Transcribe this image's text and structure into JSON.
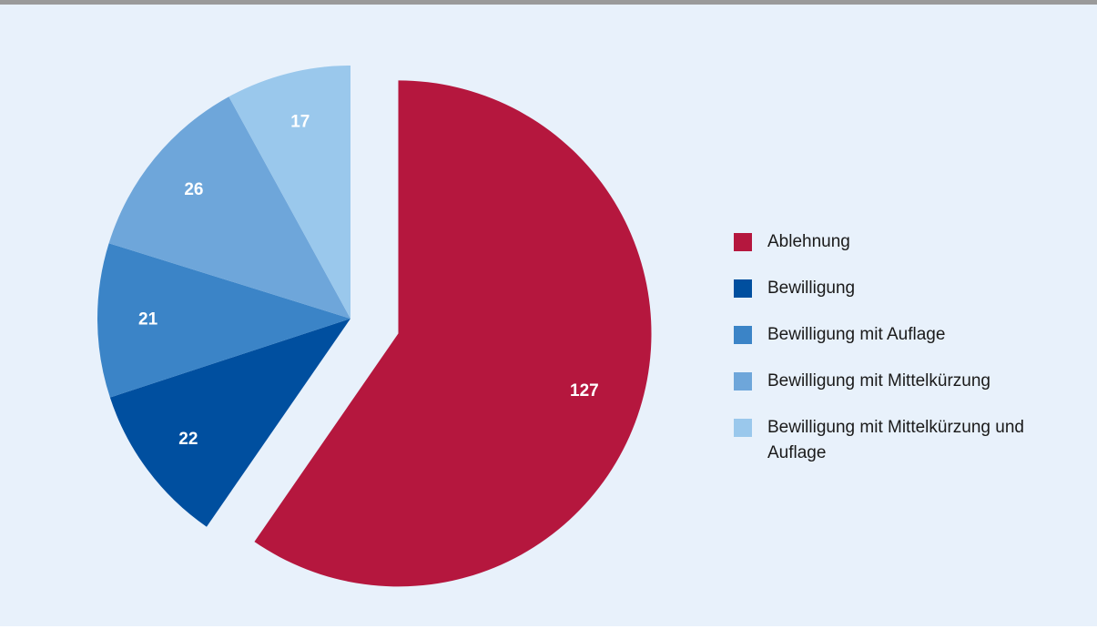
{
  "chart_data": {
    "type": "pie",
    "categories": [
      "Ablehnung",
      "Bewilligung",
      "Bewilligung mit Auflage",
      "Bewilligung mit Mittelkürzung",
      "Bewilligung mit Mittelkürzung und Auflage"
    ],
    "values": [
      127,
      22,
      21,
      26,
      17
    ],
    "colors": [
      "#b5173e",
      "#004f9f",
      "#3b84c7",
      "#6ea6da",
      "#9ac8ec"
    ],
    "exploded": [
      true,
      false,
      false,
      false,
      false
    ],
    "legend": "right"
  }
}
